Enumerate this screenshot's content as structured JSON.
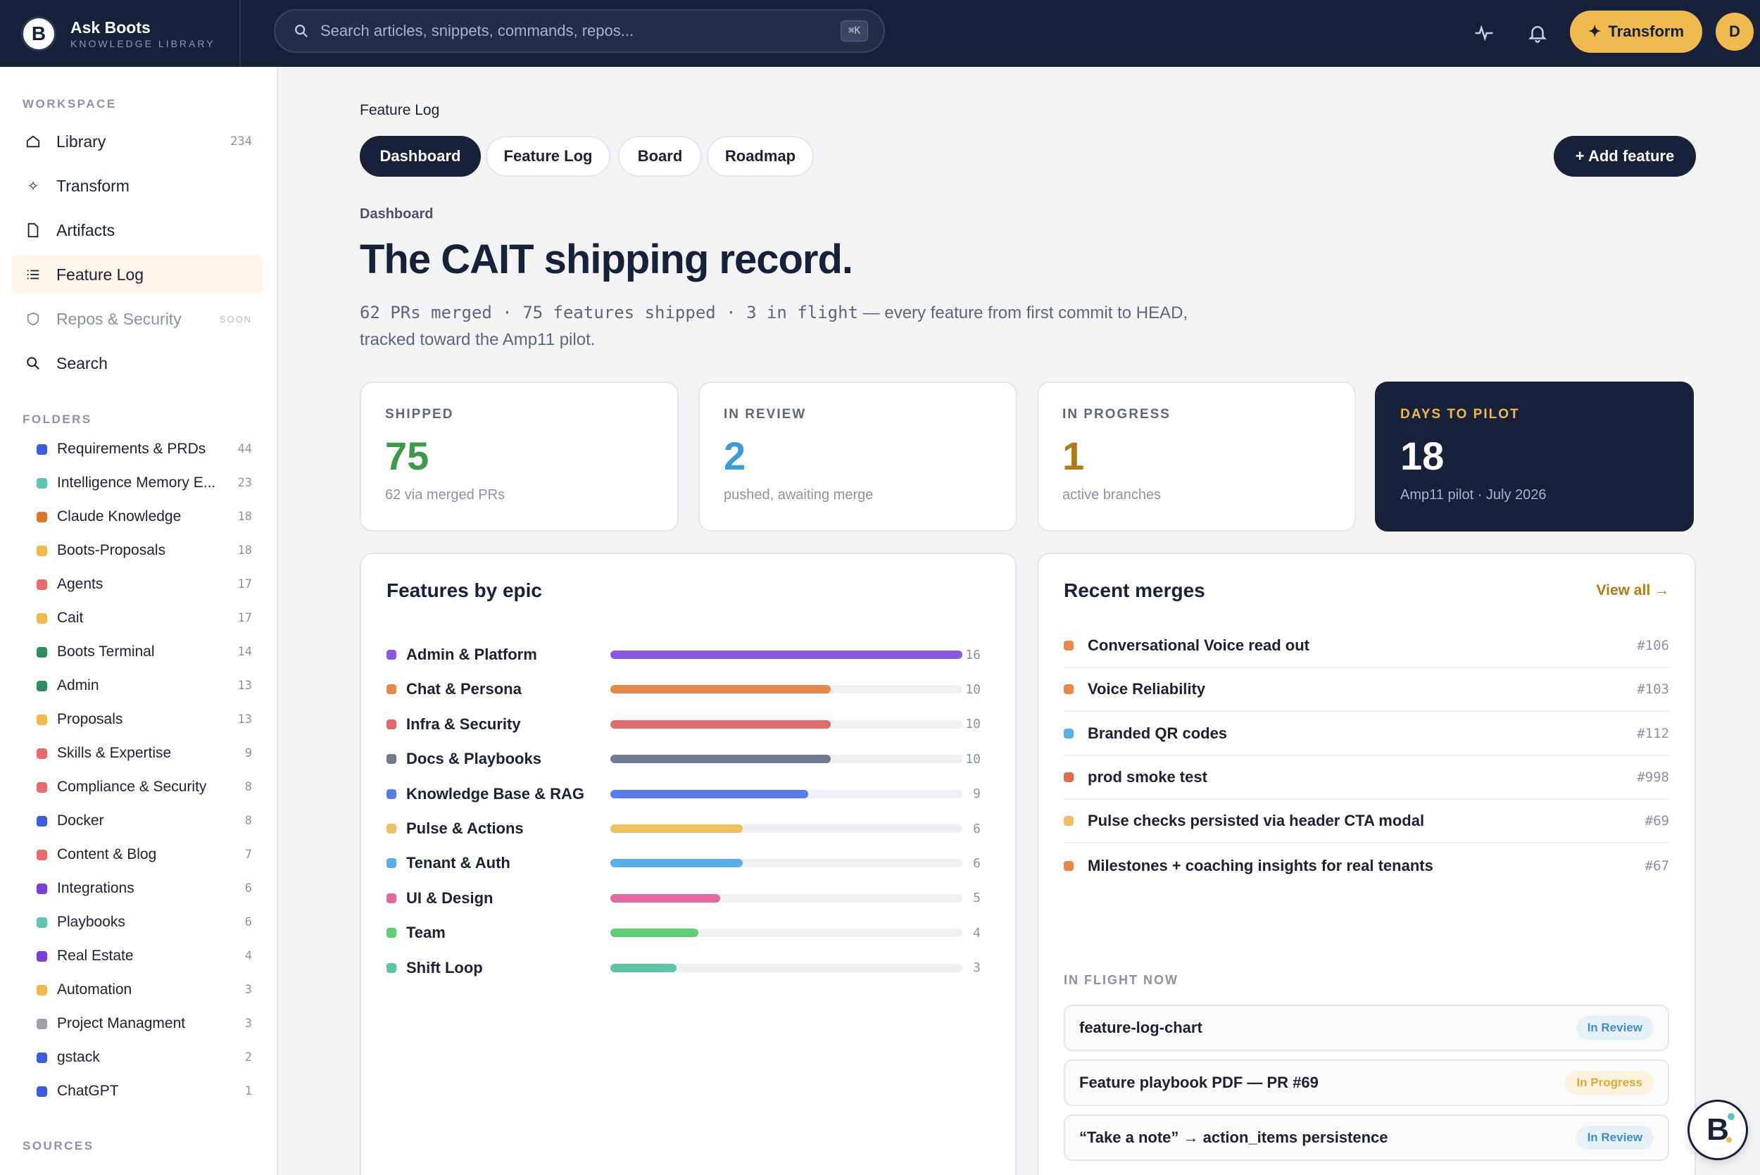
{
  "brand": {
    "name": "Ask Boots",
    "subtitle": "KNOWLEDGE LIBRARY",
    "logo_letter": "B"
  },
  "search": {
    "placeholder": "Search articles, snippets, commands, repos...",
    "shortcut": "⌘K"
  },
  "topbar": {
    "transform_label": "Transform",
    "avatar_initial": "D",
    "icons": [
      "activity-icon",
      "bell-icon"
    ]
  },
  "sidebar": {
    "workspace_label": "WORKSPACE",
    "nav": [
      {
        "label": "Library",
        "count": "234",
        "icon": "home-icon"
      },
      {
        "label": "Transform",
        "count": "",
        "icon": "sparkle-icon"
      },
      {
        "label": "Artifacts",
        "count": "",
        "icon": "file-icon"
      },
      {
        "label": "Feature Log",
        "count": "",
        "icon": "list-icon",
        "active": true
      },
      {
        "label": "Repos & Security",
        "soon": "SOON",
        "icon": "shield-icon",
        "disabled": true
      },
      {
        "label": "Search",
        "count": "",
        "icon": "search-icon"
      }
    ],
    "folders_label": "FOLDERS",
    "folders": [
      {
        "label": "Requirements & PRDs",
        "count": "44",
        "color": "#3b5bdb"
      },
      {
        "label": "Intelligence Memory E...",
        "count": "23",
        "color": "#5ec4b8"
      },
      {
        "label": "Claude Knowledge",
        "count": "18",
        "color": "#d9782d"
      },
      {
        "label": "Boots-Proposals",
        "count": "18",
        "color": "#efb94f"
      },
      {
        "label": "Agents",
        "count": "17",
        "color": "#e86a6a"
      },
      {
        "label": "Cait",
        "count": "17",
        "color": "#efb94f"
      },
      {
        "label": "Boots Terminal",
        "count": "14",
        "color": "#2f8a5f"
      },
      {
        "label": "Admin",
        "count": "13",
        "color": "#2f8a5f"
      },
      {
        "label": "Proposals",
        "count": "13",
        "color": "#efb94f"
      },
      {
        "label": "Skills & Expertise",
        "count": "9",
        "color": "#e86a6a"
      },
      {
        "label": "Compliance & Security",
        "count": "8",
        "color": "#e86a6a"
      },
      {
        "label": "Docker",
        "count": "8",
        "color": "#3b5bdb"
      },
      {
        "label": "Content & Blog",
        "count": "7",
        "color": "#e86a6a"
      },
      {
        "label": "Integrations",
        "count": "6",
        "color": "#7b3fd6"
      },
      {
        "label": "Playbooks",
        "count": "6",
        "color": "#5ec4b8"
      },
      {
        "label": "Real Estate",
        "count": "4",
        "color": "#7b3fd6"
      },
      {
        "label": "Automation",
        "count": "3",
        "color": "#efb94f"
      },
      {
        "label": "Project Managment",
        "count": "3",
        "color": "#9aa0ad"
      },
      {
        "label": "gstack",
        "count": "2",
        "color": "#3b5bdb"
      },
      {
        "label": "ChatGPT",
        "count": "1",
        "color": "#3b5bdb"
      }
    ],
    "sources_label": "SOURCES"
  },
  "main": {
    "breadcrumb": "Feature Log",
    "tabs": [
      {
        "label": "Dashboard",
        "active": true
      },
      {
        "label": "Feature Log"
      },
      {
        "label": "Board"
      },
      {
        "label": "Roadmap"
      }
    ],
    "add_label": "+ Add feature",
    "kicker": "Dashboard",
    "title": "The CAIT shipping record.",
    "subtitle_mono": "62 PRs merged · 75 features shipped · 3 in flight",
    "subtitle_rest": " — every feature from first commit to HEAD, tracked toward the Amp11 pilot.",
    "stats": [
      {
        "label": "SHIPPED",
        "value": "75",
        "note": "62 via merged PRs",
        "color": "#3e9a4a"
      },
      {
        "label": "IN REVIEW",
        "value": "2",
        "note": "pushed, awaiting merge",
        "color": "#3e9ad6"
      },
      {
        "label": "IN PROGRESS",
        "value": "1",
        "note": "active branches",
        "color": "#b07a16"
      },
      {
        "label": "DAYS TO PILOT",
        "value": "18",
        "note": "Amp11 pilot · July 2026",
        "color": "#ffffff",
        "dark": true
      }
    ],
    "epics": {
      "title": "Features by epic",
      "max": 16,
      "items": [
        {
          "label": "Admin & Platform",
          "value": 16,
          "color": "#8a5be0"
        },
        {
          "label": "Chat & Persona",
          "value": 10,
          "color": "#e8884a"
        },
        {
          "label": "Infra & Security",
          "value": 10,
          "color": "#e06a6a"
        },
        {
          "label": "Docs & Playbooks",
          "value": 10,
          "color": "#6f7a90"
        },
        {
          "label": "Knowledge Base & RAG",
          "value": 9,
          "color": "#5b7be6"
        },
        {
          "label": "Pulse & Actions",
          "value": 6,
          "color": "#efc061"
        },
        {
          "label": "Tenant & Auth",
          "value": 6,
          "color": "#5ab0e6"
        },
        {
          "label": "UI & Design",
          "value": 5,
          "color": "#e06aa0"
        },
        {
          "label": "Team",
          "value": 4,
          "color": "#5fcf74"
        },
        {
          "label": "Shift Loop",
          "value": 3,
          "color": "#5ec4a8"
        }
      ]
    },
    "merges": {
      "title": "Recent merges",
      "view_all": "View all →",
      "items": [
        {
          "label": "Conversational Voice read out",
          "pr": "#106",
          "color": "#e8884a"
        },
        {
          "label": "Voice Reliability",
          "pr": "#103",
          "color": "#e8884a"
        },
        {
          "label": "Branded QR codes",
          "pr": "#112",
          "color": "#5ab0e6"
        },
        {
          "label": "prod smoke test",
          "pr": "#998",
          "color": "#e06a4a"
        },
        {
          "label": "Pulse checks persisted via header CTA modal",
          "pr": "#69",
          "color": "#efc061"
        },
        {
          "label": "Milestones + coaching insights for real tenants",
          "pr": "#67",
          "color": "#e8884a"
        }
      ],
      "inflight_label": "IN FLIGHT NOW",
      "inflight": [
        {
          "label": "feature-log-chart",
          "status": "In Review",
          "kind": "review"
        },
        {
          "label": "Feature playbook PDF — PR #69",
          "status": "In Progress",
          "kind": "progress"
        },
        {
          "label": "“Take a note” → action_items persistence",
          "status": "In Review",
          "kind": "review"
        }
      ]
    },
    "fab_letter": "B"
  }
}
